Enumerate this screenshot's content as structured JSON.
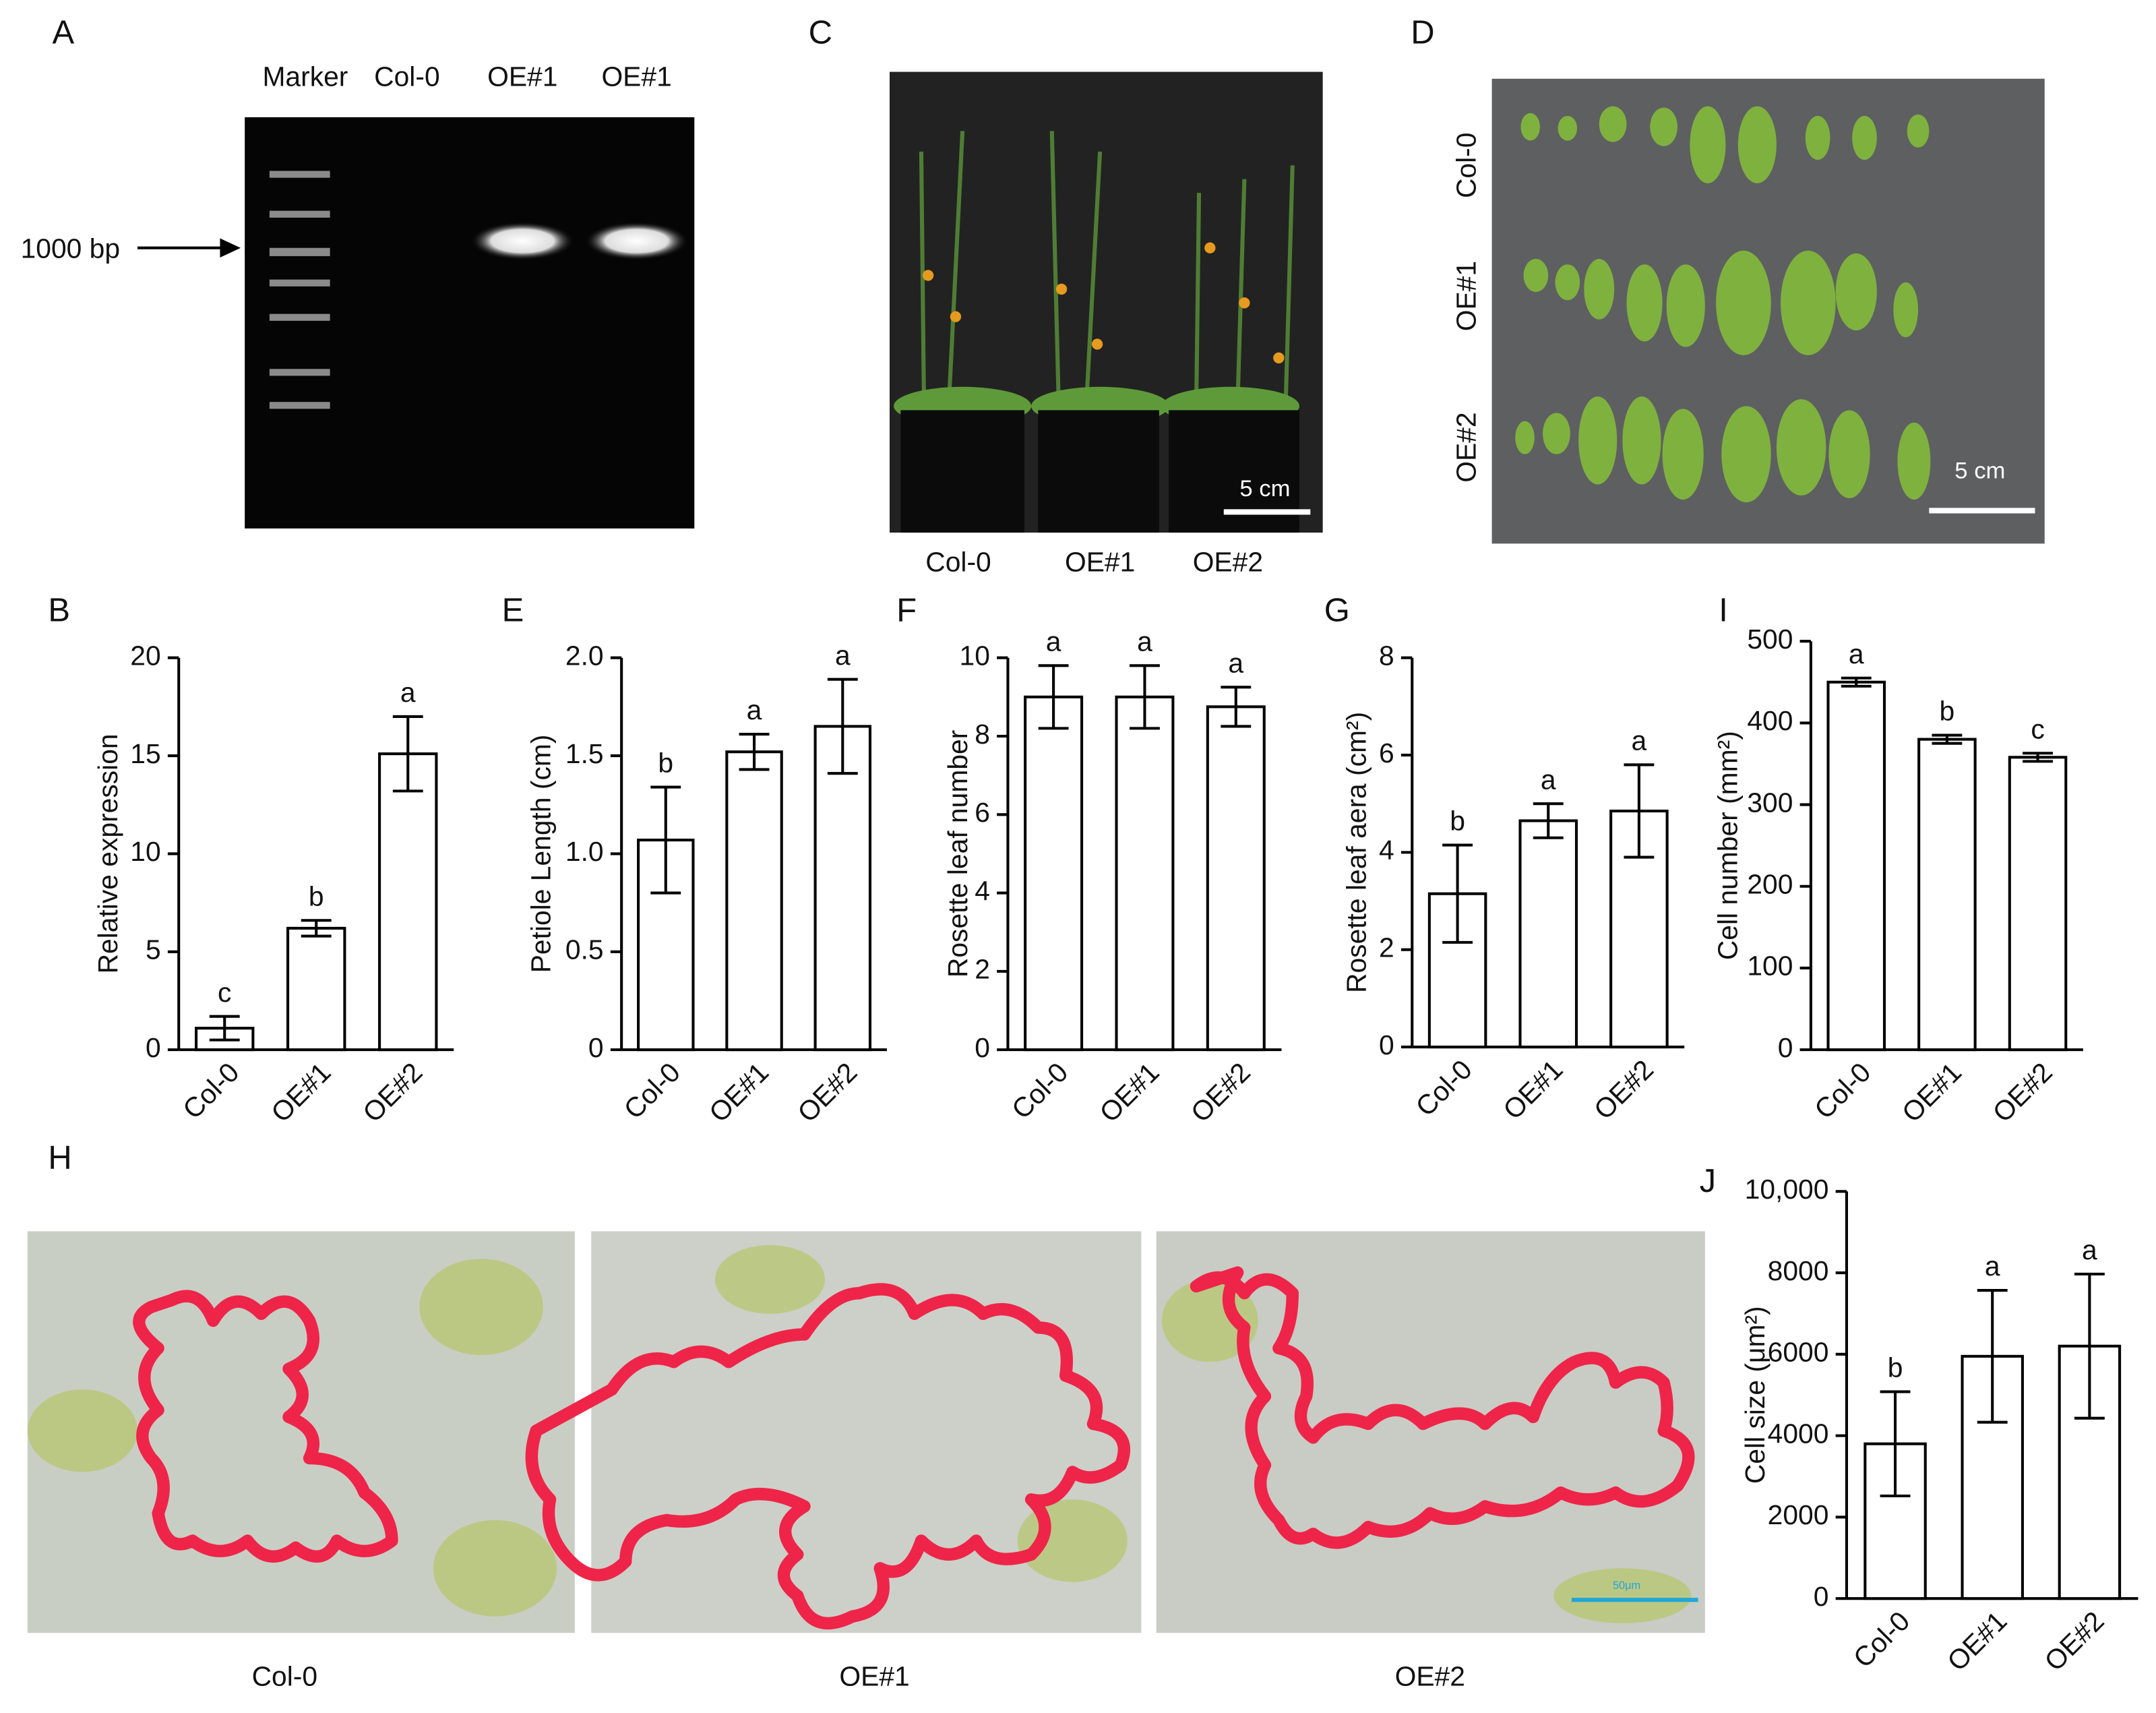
{
  "gel": {
    "panel": "A",
    "lanes": [
      "Marker",
      "Col-0",
      "OE#1",
      "OE#1"
    ],
    "marker_label": "1000 bp"
  },
  "plants": {
    "panel": "C",
    "labels": [
      "Col-0",
      "OE#1",
      "OE#2"
    ],
    "scale_bar": "5 cm"
  },
  "leaves": {
    "panel": "D",
    "rows": [
      "Col-0",
      "OE#1",
      "OE#2"
    ],
    "scale_bar": "5 cm"
  },
  "micrographs": {
    "panel": "H",
    "labels": [
      "Col-0",
      "OE#1",
      "OE#2"
    ],
    "scale_bar": "50μm"
  },
  "chart_data": [
    {
      "type": "bar",
      "label": "B",
      "ylabel": "Relative expression",
      "categories": [
        "Col-0",
        "OE#1",
        "OE#2"
      ],
      "values": [
        1.1,
        6.2,
        15.1
      ],
      "error": [
        0.6,
        0.4,
        1.9
      ],
      "annotations": [
        "c",
        "b",
        "a"
      ],
      "color": "#ffffff",
      "ylim": [
        0,
        20
      ],
      "yticks": [
        0,
        5,
        10,
        15,
        20
      ]
    },
    {
      "type": "bar",
      "label": "E",
      "ylabel": "Petiole Length (cm)",
      "categories": [
        "Col-0",
        "OE#1",
        "OE#2"
      ],
      "values": [
        1.07,
        1.52,
        1.65
      ],
      "error": [
        0.27,
        0.09,
        0.24
      ],
      "annotations": [
        "b",
        "a",
        "a"
      ],
      "color": "#ffffff",
      "ylim": [
        0,
        2
      ],
      "yticks": [
        0,
        0.5,
        {
          "value": 1,
          "label": "1.0"
        },
        1.5,
        {
          "value": 2,
          "label": "2.0"
        }
      ]
    },
    {
      "type": "bar",
      "label": "F",
      "ylabel": "Rosette leaf number",
      "categories": [
        "Col-0",
        "OE#1",
        "OE#2"
      ],
      "values": [
        9,
        9,
        8.75
      ],
      "error": [
        0.8,
        0.8,
        0.5
      ],
      "annotations": [
        "a",
        "a",
        "a"
      ],
      "color": "#ffffff",
      "ylim": [
        0,
        10
      ],
      "yticks": [
        0,
        2,
        4,
        6,
        8,
        10
      ]
    },
    {
      "type": "bar",
      "label": "G",
      "ylabel": "Rosette leaf aera (cm²)",
      "categories": [
        "Col-0",
        "OE#1",
        "OE#2"
      ],
      "values": [
        3.15,
        4.65,
        4.85
      ],
      "error": [
        1.0,
        0.35,
        0.95
      ],
      "annotations": [
        "b",
        "a",
        "a"
      ],
      "color": "#ffffff",
      "ylim": [
        0,
        8
      ],
      "yticks": [
        0,
        2,
        4,
        6,
        8
      ]
    },
    {
      "type": "bar",
      "label": "I",
      "ylabel": "Cell number (mm²)",
      "categories": [
        "Col-0",
        "OE#1",
        "OE#2"
      ],
      "values": [
        450,
        380,
        358
      ],
      "error": [
        5,
        5,
        5
      ],
      "annotations": [
        "a",
        "b",
        "c"
      ],
      "color": "#ffffff",
      "ylim": [
        0,
        500
      ],
      "yticks": [
        0,
        100,
        200,
        300,
        400,
        500
      ]
    },
    {
      "type": "bar",
      "label": "J",
      "ylabel": "Cell size (μm²)",
      "categories": [
        "Col-0",
        "OE#1",
        "OE#2"
      ],
      "values": [
        3800,
        5950,
        6200
      ],
      "error": [
        1280,
        1620,
        1770
      ],
      "annotations": [
        "b",
        "a",
        "a"
      ],
      "color": "#ffffff",
      "ylim": [
        0,
        10000
      ],
      "yticks": [
        0,
        2000,
        4000,
        6000,
        8000,
        {
          "value": 10000,
          "label": "10,000"
        }
      ]
    }
  ]
}
